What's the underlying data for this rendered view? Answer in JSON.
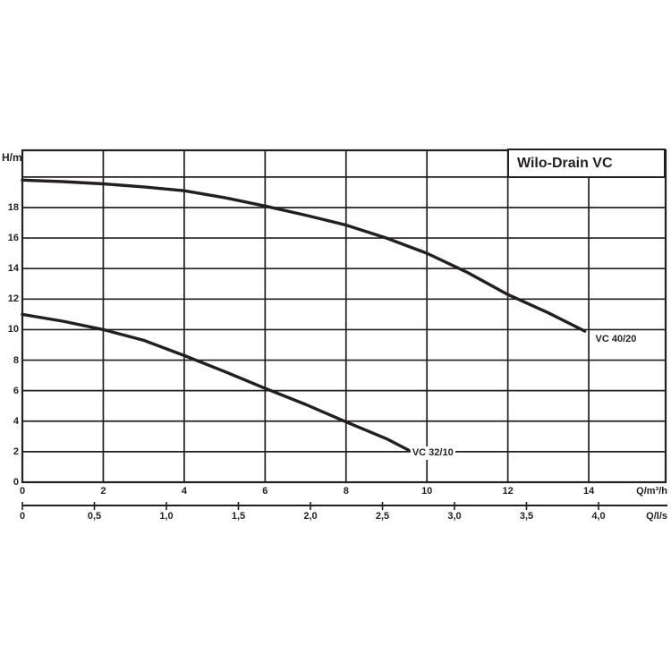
{
  "chart_data": {
    "type": "line",
    "title": "Wilo-Drain VC",
    "ylabel": "H/m",
    "ylim": [
      0,
      21.75
    ],
    "y_grid_step": 2,
    "y_grid_max": 20,
    "grid": true,
    "legend_position": "on-curve",
    "y_ticks": [
      {
        "value": 0,
        "label": "0"
      },
      {
        "value": 2,
        "label": "2"
      },
      {
        "value": 4,
        "label": "4"
      },
      {
        "value": 6,
        "label": "6"
      },
      {
        "value": 8,
        "label": "8"
      },
      {
        "value": 10,
        "label": "10"
      },
      {
        "value": 12,
        "label": "12"
      },
      {
        "value": 14,
        "label": "14"
      },
      {
        "value": 16,
        "label": "16"
      },
      {
        "value": 18,
        "label": "18"
      }
    ],
    "x_axes": [
      {
        "unit": "Q/m³/h",
        "lim": [
          0,
          15.9
        ],
        "grid_step": 2,
        "grid_max": 14,
        "ticks": [
          {
            "value": 0,
            "label": "0"
          },
          {
            "value": 2,
            "label": "2"
          },
          {
            "value": 4,
            "label": "4"
          },
          {
            "value": 6,
            "label": "6"
          },
          {
            "value": 8,
            "label": "8"
          },
          {
            "value": 10,
            "label": "10"
          },
          {
            "value": 12,
            "label": "12"
          },
          {
            "value": 14,
            "label": "14"
          }
        ]
      },
      {
        "unit": "Q/l/s",
        "lim": [
          0,
          4.47
        ],
        "ticks": [
          {
            "value": 0,
            "label": "0"
          },
          {
            "value": 0.5,
            "label": "0,5"
          },
          {
            "value": 1,
            "label": "1,0"
          },
          {
            "value": 1.5,
            "label": "1,5"
          },
          {
            "value": 2,
            "label": "2,0"
          },
          {
            "value": 2.5,
            "label": "2,5"
          },
          {
            "value": 3,
            "label": "3,0"
          },
          {
            "value": 3.5,
            "label": "3,5"
          },
          {
            "value": 4,
            "label": "4,0"
          }
        ]
      }
    ],
    "series": [
      {
        "name": "VC 40/20",
        "points": [
          [
            0,
            19.8
          ],
          [
            1,
            19.7
          ],
          [
            2,
            19.55
          ],
          [
            3,
            19.35
          ],
          [
            4,
            19.1
          ],
          [
            5,
            18.65
          ],
          [
            6,
            18.1
          ],
          [
            7,
            17.5
          ],
          [
            8,
            16.85
          ],
          [
            9,
            16.0
          ],
          [
            10,
            15.0
          ],
          [
            11,
            13.75
          ],
          [
            12,
            12.3
          ],
          [
            13,
            11.1
          ],
          [
            13.9,
            9.9
          ]
        ]
      },
      {
        "name": "VC 32/10",
        "points": [
          [
            0,
            11.0
          ],
          [
            1,
            10.55
          ],
          [
            2,
            10.0
          ],
          [
            3,
            9.3
          ],
          [
            4,
            8.3
          ],
          [
            5,
            7.25
          ],
          [
            6,
            6.15
          ],
          [
            7,
            5.1
          ],
          [
            8,
            3.95
          ],
          [
            9,
            2.85
          ],
          [
            9.55,
            2.1
          ]
        ]
      }
    ]
  },
  "colors": {
    "ink": "#231f20",
    "background": "#ffffff"
  }
}
